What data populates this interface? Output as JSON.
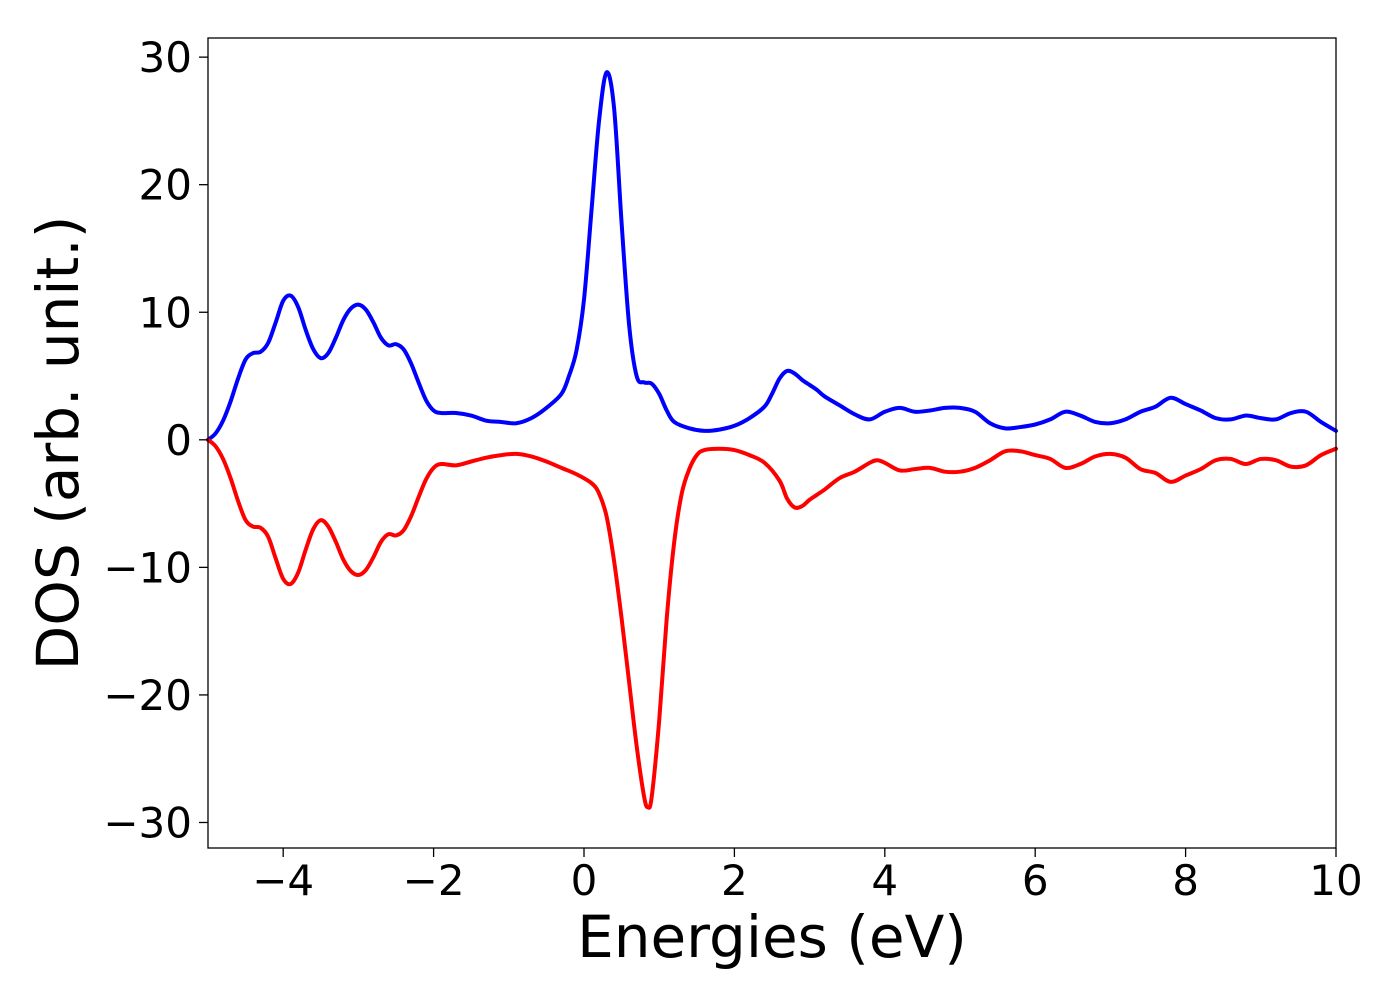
{
  "chart_data": {
    "type": "line",
    "title": "",
    "xlabel": "Energies (eV)",
    "ylabel": "DOS (arb. unit.)",
    "xlim": [
      -5,
      10
    ],
    "ylim": [
      -32,
      31.5
    ],
    "grid": false,
    "legend": "none",
    "x_ticks": [
      -4,
      -2,
      0,
      2,
      4,
      6,
      8,
      10
    ],
    "x_tick_labels": [
      "−4",
      "−2",
      "0",
      "2",
      "4",
      "6",
      "8",
      "10"
    ],
    "y_ticks": [
      -30,
      -20,
      -10,
      0,
      10,
      20,
      30
    ],
    "y_tick_labels": [
      "−30",
      "−20",
      "−10",
      "0",
      "10",
      "20",
      "30"
    ],
    "series": [
      {
        "color": "#0000ff",
        "points": [
          [
            -5.0,
            0.0
          ],
          [
            -4.9,
            0.5
          ],
          [
            -4.8,
            1.5
          ],
          [
            -4.7,
            3.0
          ],
          [
            -4.6,
            4.8
          ],
          [
            -4.5,
            6.3
          ],
          [
            -4.4,
            6.8
          ],
          [
            -4.3,
            6.9
          ],
          [
            -4.2,
            7.6
          ],
          [
            -4.1,
            9.2
          ],
          [
            -4.0,
            10.9
          ],
          [
            -3.9,
            11.3
          ],
          [
            -3.8,
            10.4
          ],
          [
            -3.7,
            8.6
          ],
          [
            -3.6,
            7.1
          ],
          [
            -3.5,
            6.4
          ],
          [
            -3.4,
            6.8
          ],
          [
            -3.3,
            8.0
          ],
          [
            -3.2,
            9.4
          ],
          [
            -3.1,
            10.3
          ],
          [
            -3.0,
            10.6
          ],
          [
            -2.9,
            10.2
          ],
          [
            -2.8,
            9.2
          ],
          [
            -2.7,
            8.0
          ],
          [
            -2.6,
            7.4
          ],
          [
            -2.5,
            7.5
          ],
          [
            -2.4,
            7.1
          ],
          [
            -2.3,
            6.0
          ],
          [
            -2.2,
            4.5
          ],
          [
            -2.1,
            3.1
          ],
          [
            -2.0,
            2.3
          ],
          [
            -1.9,
            2.1
          ],
          [
            -1.7,
            2.1
          ],
          [
            -1.5,
            1.9
          ],
          [
            -1.3,
            1.5
          ],
          [
            -1.1,
            1.4
          ],
          [
            -0.9,
            1.3
          ],
          [
            -0.7,
            1.7
          ],
          [
            -0.5,
            2.5
          ],
          [
            -0.3,
            3.6
          ],
          [
            -0.2,
            5.0
          ],
          [
            -0.1,
            7.0
          ],
          [
            0.0,
            11.0
          ],
          [
            0.1,
            18.0
          ],
          [
            0.2,
            25.0
          ],
          [
            0.3,
            28.8
          ],
          [
            0.4,
            26.0
          ],
          [
            0.5,
            17.0
          ],
          [
            0.6,
            9.0
          ],
          [
            0.7,
            5.0
          ],
          [
            0.8,
            4.5
          ],
          [
            0.9,
            4.4
          ],
          [
            1.0,
            3.6
          ],
          [
            1.1,
            2.3
          ],
          [
            1.2,
            1.4
          ],
          [
            1.4,
            0.9
          ],
          [
            1.6,
            0.7
          ],
          [
            1.8,
            0.8
          ],
          [
            2.0,
            1.1
          ],
          [
            2.2,
            1.7
          ],
          [
            2.4,
            2.6
          ],
          [
            2.5,
            3.6
          ],
          [
            2.6,
            4.8
          ],
          [
            2.7,
            5.4
          ],
          [
            2.8,
            5.2
          ],
          [
            2.9,
            4.7
          ],
          [
            3.0,
            4.3
          ],
          [
            3.1,
            3.9
          ],
          [
            3.2,
            3.4
          ],
          [
            3.4,
            2.7
          ],
          [
            3.6,
            2.0
          ],
          [
            3.8,
            1.6
          ],
          [
            4.0,
            2.2
          ],
          [
            4.2,
            2.5
          ],
          [
            4.4,
            2.2
          ],
          [
            4.6,
            2.3
          ],
          [
            4.8,
            2.5
          ],
          [
            5.0,
            2.5
          ],
          [
            5.2,
            2.2
          ],
          [
            5.4,
            1.3
          ],
          [
            5.6,
            0.9
          ],
          [
            5.8,
            1.0
          ],
          [
            6.0,
            1.2
          ],
          [
            6.2,
            1.6
          ],
          [
            6.4,
            2.2
          ],
          [
            6.6,
            1.9
          ],
          [
            6.8,
            1.4
          ],
          [
            7.0,
            1.3
          ],
          [
            7.2,
            1.6
          ],
          [
            7.4,
            2.2
          ],
          [
            7.6,
            2.6
          ],
          [
            7.8,
            3.3
          ],
          [
            8.0,
            2.8
          ],
          [
            8.2,
            2.3
          ],
          [
            8.4,
            1.7
          ],
          [
            8.6,
            1.6
          ],
          [
            8.8,
            1.9
          ],
          [
            9.0,
            1.7
          ],
          [
            9.2,
            1.6
          ],
          [
            9.4,
            2.1
          ],
          [
            9.6,
            2.2
          ],
          [
            9.8,
            1.4
          ],
          [
            10.0,
            0.7
          ]
        ]
      },
      {
        "color": "#ff0000",
        "points": [
          [
            -5.0,
            0.0
          ],
          [
            -4.9,
            -0.5
          ],
          [
            -4.8,
            -1.5
          ],
          [
            -4.7,
            -3.0
          ],
          [
            -4.6,
            -4.8
          ],
          [
            -4.5,
            -6.3
          ],
          [
            -4.4,
            -6.8
          ],
          [
            -4.3,
            -6.9
          ],
          [
            -4.2,
            -7.6
          ],
          [
            -4.1,
            -9.3
          ],
          [
            -4.0,
            -10.9
          ],
          [
            -3.9,
            -11.3
          ],
          [
            -3.8,
            -10.4
          ],
          [
            -3.7,
            -8.6
          ],
          [
            -3.6,
            -7.0
          ],
          [
            -3.5,
            -6.3
          ],
          [
            -3.4,
            -6.8
          ],
          [
            -3.3,
            -8.0
          ],
          [
            -3.2,
            -9.4
          ],
          [
            -3.1,
            -10.3
          ],
          [
            -3.0,
            -10.6
          ],
          [
            -2.9,
            -10.2
          ],
          [
            -2.8,
            -9.2
          ],
          [
            -2.7,
            -8.0
          ],
          [
            -2.6,
            -7.4
          ],
          [
            -2.5,
            -7.5
          ],
          [
            -2.4,
            -7.1
          ],
          [
            -2.3,
            -6.0
          ],
          [
            -2.2,
            -4.5
          ],
          [
            -2.1,
            -3.1
          ],
          [
            -2.0,
            -2.2
          ],
          [
            -1.9,
            -1.9
          ],
          [
            -1.7,
            -2.0
          ],
          [
            -1.5,
            -1.7
          ],
          [
            -1.3,
            -1.4
          ],
          [
            -1.1,
            -1.2
          ],
          [
            -0.9,
            -1.1
          ],
          [
            -0.7,
            -1.3
          ],
          [
            -0.5,
            -1.7
          ],
          [
            -0.3,
            -2.2
          ],
          [
            -0.1,
            -2.7
          ],
          [
            0.1,
            -3.4
          ],
          [
            0.2,
            -4.2
          ],
          [
            0.3,
            -6.0
          ],
          [
            0.4,
            -9.5
          ],
          [
            0.5,
            -14.0
          ],
          [
            0.6,
            -19.0
          ],
          [
            0.7,
            -24.0
          ],
          [
            0.8,
            -28.0
          ],
          [
            0.85,
            -28.8
          ],
          [
            0.9,
            -28.0
          ],
          [
            1.0,
            -22.0
          ],
          [
            1.1,
            -14.0
          ],
          [
            1.2,
            -8.0
          ],
          [
            1.3,
            -4.2
          ],
          [
            1.4,
            -2.3
          ],
          [
            1.5,
            -1.2
          ],
          [
            1.6,
            -0.8
          ],
          [
            1.8,
            -0.7
          ],
          [
            2.0,
            -0.8
          ],
          [
            2.2,
            -1.2
          ],
          [
            2.4,
            -1.8
          ],
          [
            2.6,
            -3.2
          ],
          [
            2.7,
            -4.6
          ],
          [
            2.8,
            -5.3
          ],
          [
            2.9,
            -5.2
          ],
          [
            3.0,
            -4.7
          ],
          [
            3.1,
            -4.3
          ],
          [
            3.2,
            -3.9
          ],
          [
            3.4,
            -3.0
          ],
          [
            3.6,
            -2.5
          ],
          [
            3.8,
            -1.8
          ],
          [
            3.9,
            -1.6
          ],
          [
            4.0,
            -1.8
          ],
          [
            4.2,
            -2.4
          ],
          [
            4.4,
            -2.3
          ],
          [
            4.6,
            -2.2
          ],
          [
            4.8,
            -2.5
          ],
          [
            5.0,
            -2.5
          ],
          [
            5.2,
            -2.2
          ],
          [
            5.4,
            -1.6
          ],
          [
            5.6,
            -0.9
          ],
          [
            5.8,
            -0.9
          ],
          [
            6.0,
            -1.2
          ],
          [
            6.2,
            -1.5
          ],
          [
            6.4,
            -2.2
          ],
          [
            6.6,
            -1.9
          ],
          [
            6.8,
            -1.3
          ],
          [
            7.0,
            -1.1
          ],
          [
            7.2,
            -1.4
          ],
          [
            7.4,
            -2.3
          ],
          [
            7.6,
            -2.6
          ],
          [
            7.8,
            -3.3
          ],
          [
            8.0,
            -2.8
          ],
          [
            8.2,
            -2.3
          ],
          [
            8.4,
            -1.6
          ],
          [
            8.6,
            -1.5
          ],
          [
            8.8,
            -1.9
          ],
          [
            9.0,
            -1.5
          ],
          [
            9.2,
            -1.6
          ],
          [
            9.4,
            -2.1
          ],
          [
            9.6,
            -2.0
          ],
          [
            9.8,
            -1.2
          ],
          [
            10.0,
            -0.7
          ]
        ]
      }
    ]
  }
}
